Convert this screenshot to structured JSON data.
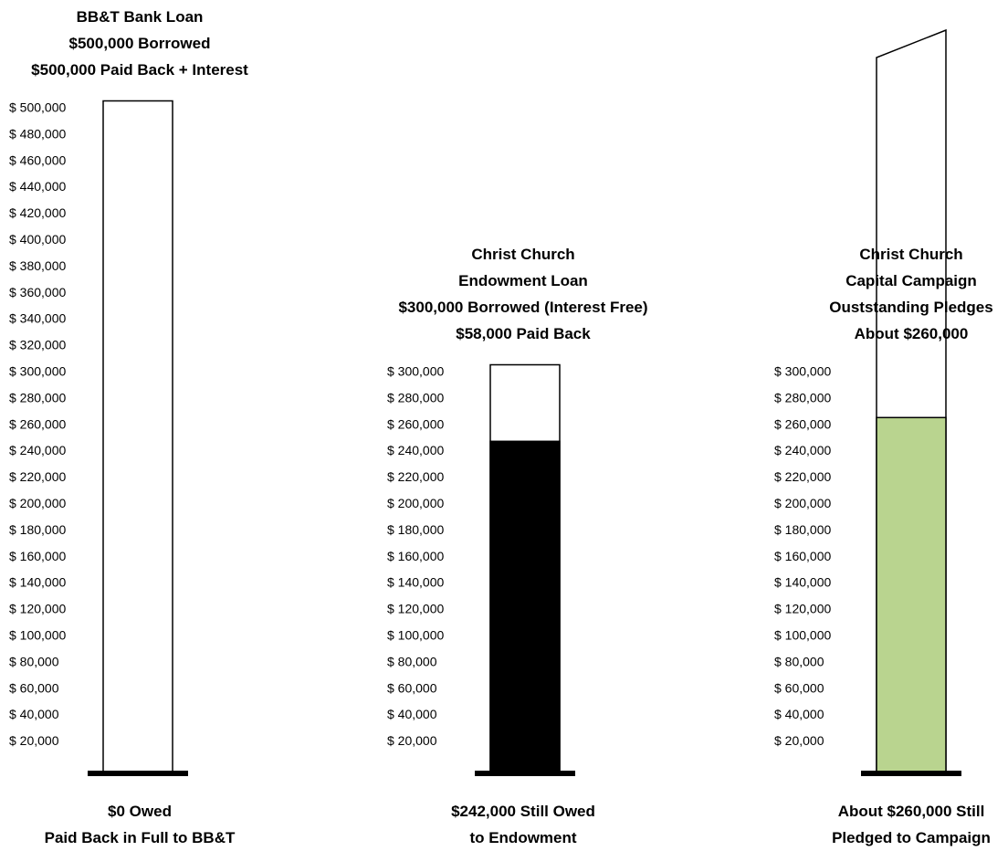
{
  "chart_data": [
    {
      "type": "bar",
      "title_lines": [
        "BB&T Bank Loan",
        "$500,000 Borrowed",
        "$500,000 Paid Back + Interest"
      ],
      "caption_lines": [
        "$0 Owed",
        "Paid Back in Full to BB&T"
      ],
      "tick_labels": [
        "$ 500,000",
        "$ 480,000",
        "$ 460,000",
        "$ 440,000",
        "$ 420,000",
        "$ 400,000",
        "$ 380,000",
        "$ 360,000",
        "$ 340,000",
        "$ 320,000",
        "$ 300,000",
        "$ 280,000",
        "$ 260,000",
        "$ 240,000",
        "$ 220,000",
        "$ 200,000",
        "$ 180,000",
        "$ 160,000",
        "$ 140,000",
        "$ 120,000",
        "$ 100,000",
        "$ 80,000",
        "$ 60,000",
        "$ 40,000",
        "$ 20,000"
      ],
      "ylim": [
        0,
        500000
      ],
      "capacity": 500000,
      "value": 0,
      "fill_color": "#000000"
    },
    {
      "type": "bar",
      "title_lines": [
        "Christ Church",
        "Endowment Loan",
        "$300,000 Borrowed (Interest Free)",
        "$58,000 Paid Back"
      ],
      "caption_lines": [
        "$242,000 Still Owed",
        "to Endowment"
      ],
      "tick_labels": [
        "$ 300,000",
        "$ 280,000",
        "$ 260,000",
        "$ 240,000",
        "$ 220,000",
        "$ 200,000",
        "$ 180,000",
        "$ 160,000",
        "$ 140,000",
        "$ 120,000",
        "$ 100,000",
        "$ 80,000",
        "$ 60,000",
        "$ 40,000",
        "$ 20,000"
      ],
      "ylim": [
        0,
        300000
      ],
      "capacity": 300000,
      "value": 242000,
      "fill_color": "#000000"
    },
    {
      "type": "bar",
      "title_lines": [
        "Christ Church",
        "Capital Campaign",
        "Ouststanding Pledges",
        "About $260,000"
      ],
      "caption_lines": [
        "About $260,000 Still",
        "Pledged to Campaign"
      ],
      "tick_labels": [
        "$ 300,000",
        "$ 280,000",
        "$ 260,000",
        "$ 240,000",
        "$ 220,000",
        "$ 200,000",
        "$ 180,000",
        "$ 160,000",
        "$ 140,000",
        "$ 120,000",
        "$ 100,000",
        "$ 80,000",
        "$ 60,000",
        "$ 40,000",
        "$ 20,000"
      ],
      "ylim": [
        0,
        300000
      ],
      "capacity": 300000,
      "value": 260000,
      "fill_color": "#b9d48f"
    }
  ]
}
